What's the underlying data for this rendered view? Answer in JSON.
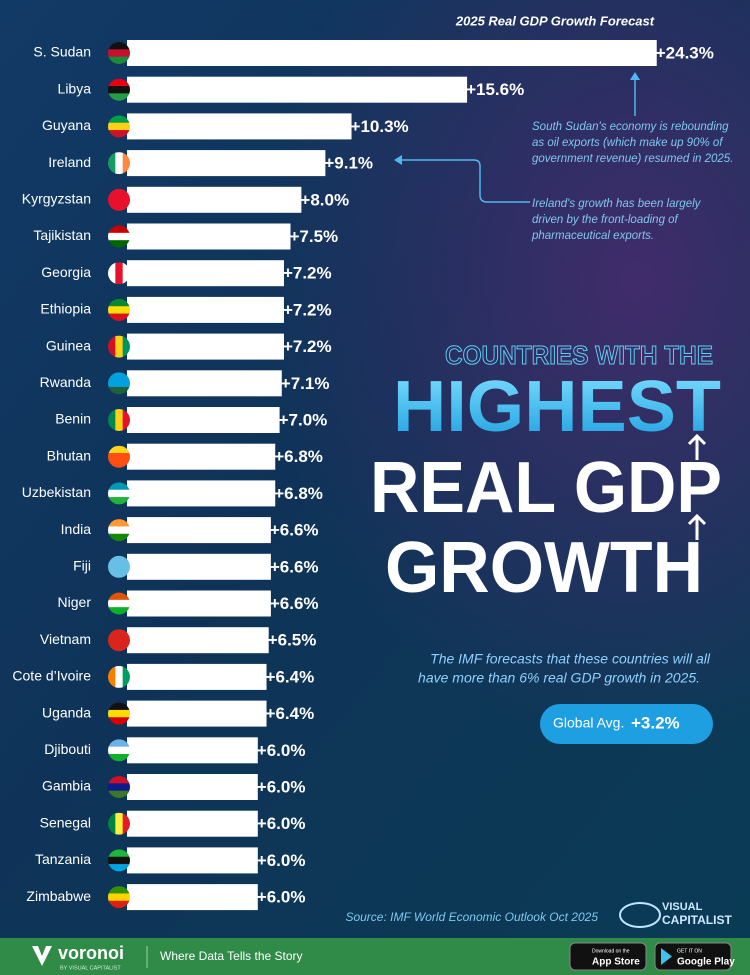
{
  "chart_data": {
    "type": "bar",
    "orientation": "horizontal",
    "title": "2025 Real GDP Growth Forecast",
    "color": "#ffffff",
    "categories": [
      "S. Sudan",
      "Libya",
      "Guyana",
      "Ireland",
      "Kyrgyzstan",
      "Tajikistan",
      "Georgia",
      "Ethiopia",
      "Guinea",
      "Rwanda",
      "Benin",
      "Bhutan",
      "Uzbekistan",
      "India",
      "Fiji",
      "Niger",
      "Vietnam",
      "Cote d’Ivoire",
      "Uganda",
      "Djibouti",
      "Gambia",
      "Senegal",
      "Tanzania",
      "Zimbabwe"
    ],
    "values": [
      24.3,
      15.6,
      10.3,
      9.1,
      8.0,
      7.5,
      7.2,
      7.2,
      7.2,
      7.1,
      7.0,
      6.8,
      6.8,
      6.6,
      6.6,
      6.6,
      6.5,
      6.4,
      6.4,
      6.0,
      6.0,
      6.0,
      6.0,
      6.0
    ],
    "value_labels": [
      "+24.3%",
      "+15.6%",
      "+10.3%",
      "+9.1%",
      "+8.0%",
      "+7.5%",
      "+7.2%",
      "+7.2%",
      "+7.2%",
      "+7.1%",
      "+7.0%",
      "+6.8%",
      "+6.8%",
      "+6.6%",
      "+6.6%",
      "+6.6%",
      "+6.5%",
      "+6.4%",
      "+6.4%",
      "+6.0%",
      "+6.0%",
      "+6.0%",
      "+6.0%",
      "+6.0%"
    ],
    "annotations": [
      {
        "lines": [
          "South Sudan's economy is rebounding",
          "as oil exports (which make up 90% of",
          "government revenue) resumed in 2025."
        ]
      },
      {
        "lines": [
          "Ireland's growth has been largely",
          "driven by the front-loading of",
          "pharmaceutical exports."
        ]
      }
    ],
    "headline": [
      "COUNTRIES WITH THE",
      "HIGHEST",
      "REAL GDP",
      "GROWTH"
    ],
    "subtitle": [
      "The IMF forecasts that these countries will all",
      "have more than 6% real GDP growth in 2025."
    ],
    "global_avg": {
      "label": "Global Avg.",
      "value": "+3.2%"
    },
    "source": "Source: IMF World Economic Outlook Oct 2025"
  },
  "branding": {
    "logo": [
      "VISUAL",
      "CAPITALIST"
    ]
  },
  "footer": {
    "brand": "voronoi",
    "byline": "BY VISUAL CAPITALIST",
    "tagline": "Where Data Tells the Story",
    "app_store": [
      "Download on the",
      "App Store"
    ],
    "google_play": [
      "GET IT ON",
      "Google Play"
    ]
  }
}
